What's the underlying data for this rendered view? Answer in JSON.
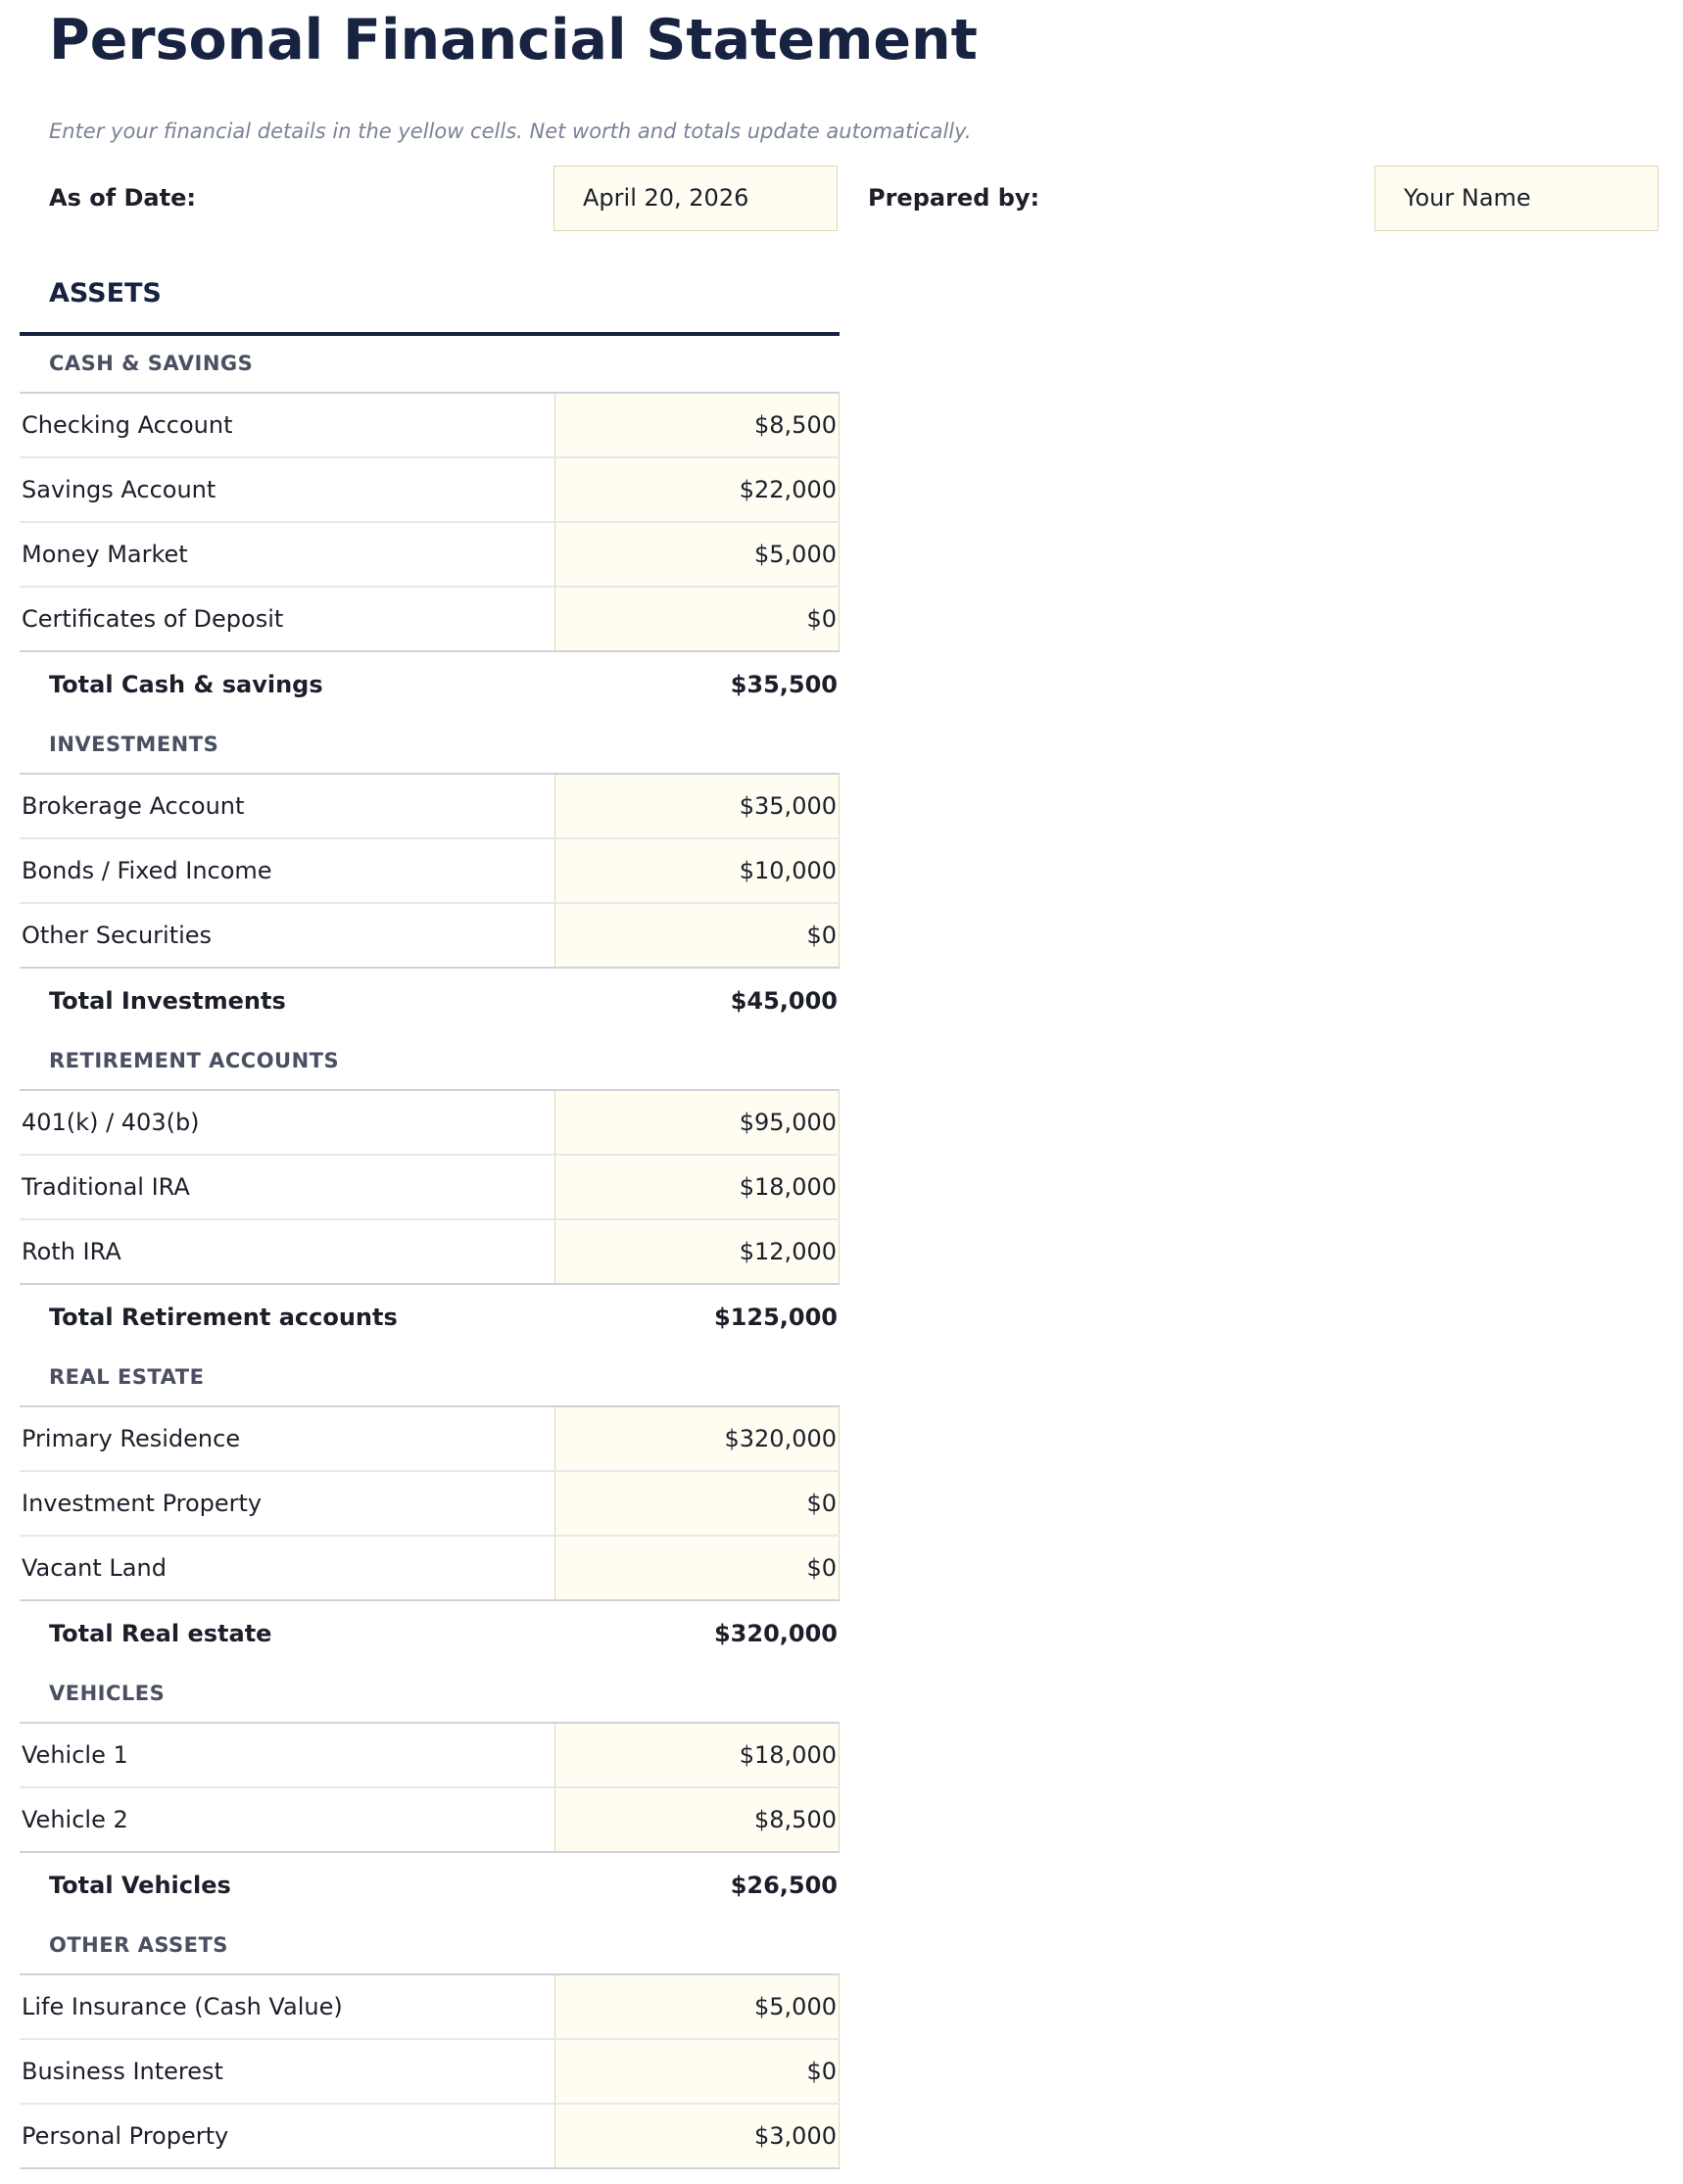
{
  "header": {
    "title": "Personal Financial Statement",
    "subtitle": "Enter your financial details in the yellow cells. Net worth and totals update automatically.",
    "as_of_label": "As of Date:",
    "as_of_value": "April 20, 2026",
    "prepared_label": "Prepared by:",
    "prepared_value": "Your Name"
  },
  "assets": {
    "title": "ASSETS",
    "sections": [
      {
        "header": "CASH & SAVINGS",
        "rows": [
          {
            "label": "Checking Account",
            "value": "$8,500"
          },
          {
            "label": "Savings Account",
            "value": "$22,000"
          },
          {
            "label": "Money Market",
            "value": "$5,000"
          },
          {
            "label": "Certificates of Deposit",
            "value": "$0"
          }
        ],
        "total_label": "Total Cash & savings",
        "total_value": "$35,500"
      },
      {
        "header": "INVESTMENTS",
        "rows": [
          {
            "label": "Brokerage Account",
            "value": "$35,000"
          },
          {
            "label": "Bonds / Fixed Income",
            "value": "$10,000"
          },
          {
            "label": "Other Securities",
            "value": "$0"
          }
        ],
        "total_label": "Total Investments",
        "total_value": "$45,000"
      },
      {
        "header": "RETIREMENT ACCOUNTS",
        "rows": [
          {
            "label": "401(k) / 403(b)",
            "value": "$95,000"
          },
          {
            "label": "Traditional IRA",
            "value": "$18,000"
          },
          {
            "label": "Roth IRA",
            "value": "$12,000"
          }
        ],
        "total_label": "Total Retirement accounts",
        "total_value": "$125,000"
      },
      {
        "header": "REAL ESTATE",
        "rows": [
          {
            "label": "Primary Residence",
            "value": "$320,000"
          },
          {
            "label": "Investment Property",
            "value": "$0"
          },
          {
            "label": "Vacant Land",
            "value": "$0"
          }
        ],
        "total_label": "Total Real estate",
        "total_value": "$320,000"
      },
      {
        "header": "VEHICLES",
        "rows": [
          {
            "label": "Vehicle 1",
            "value": "$18,000"
          },
          {
            "label": "Vehicle 2",
            "value": "$8,500"
          }
        ],
        "total_label": "Total Vehicles",
        "total_value": "$26,500"
      },
      {
        "header": "OTHER ASSETS",
        "rows": [
          {
            "label": "Life Insurance (Cash Value)",
            "value": "$5,000"
          },
          {
            "label": "Business Interest",
            "value": "$0"
          },
          {
            "label": "Personal Property",
            "value": "$3,000"
          }
        ]
      }
    ]
  },
  "colors": {
    "title": "#172340",
    "input_fill": "#fffcf2",
    "input_border": "#e2d6b4",
    "section_header": "#4a5062"
  }
}
